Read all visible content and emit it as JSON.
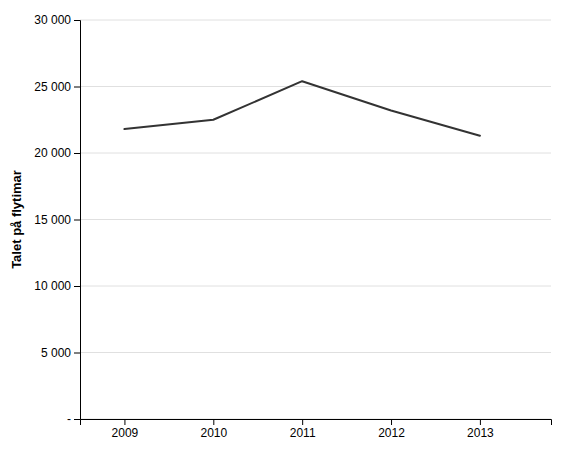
{
  "chart_data": {
    "type": "line",
    "x": [
      2009,
      2010,
      2011,
      2012,
      2013
    ],
    "values": [
      21800,
      22500,
      25400,
      23200,
      21300
    ],
    "color": "#333333",
    "ylabel": "Talet på flytimar",
    "xlim": [
      2008.5,
      2013.8
    ],
    "xticks": [
      2009,
      2010,
      2011,
      2012,
      2013
    ],
    "ylim": [
      0,
      30000
    ],
    "yticks": [
      {
        "value": 0,
        "label": "-"
      },
      {
        "value": 5000,
        "label": "5 000"
      },
      {
        "value": 10000,
        "label": "10 000"
      },
      {
        "value": 15000,
        "label": "15 000"
      },
      {
        "value": 20000,
        "label": "20 000"
      },
      {
        "value": 25000,
        "label": "25 000"
      },
      {
        "value": 30000,
        "label": "30 000"
      }
    ],
    "grid": true
  }
}
